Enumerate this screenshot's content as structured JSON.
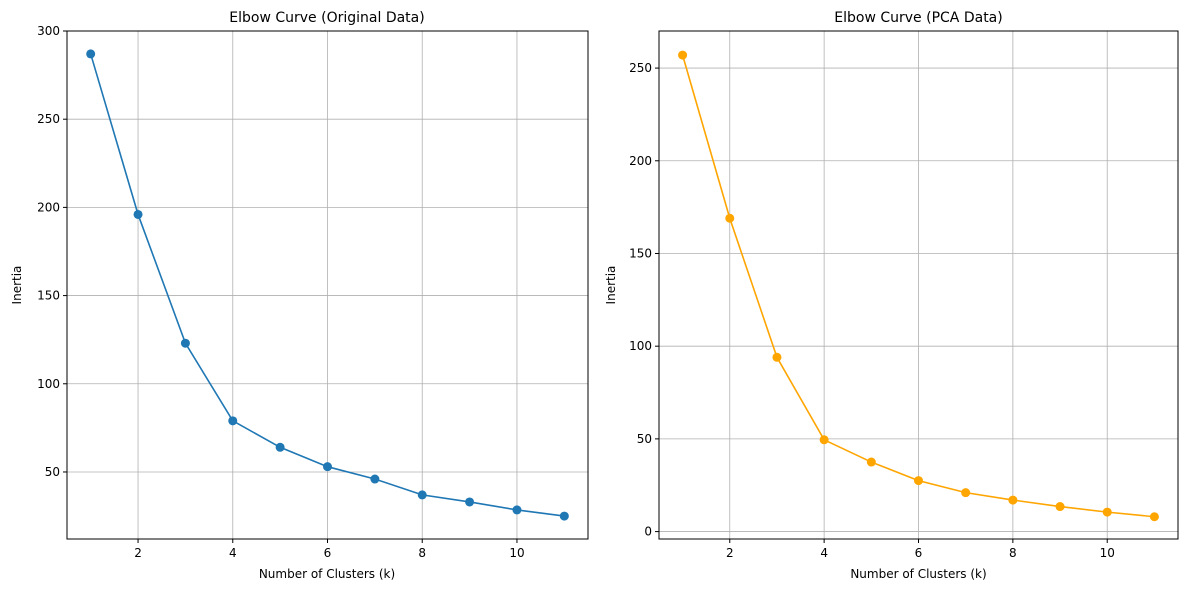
{
  "chart_data": [
    {
      "type": "line",
      "title": "Elbow Curve (Original Data)",
      "xlabel": "Number of Clusters (k)",
      "ylabel": "Inertia",
      "x": [
        1,
        2,
        3,
        4,
        5,
        6,
        7,
        8,
        9,
        10,
        11
      ],
      "series": [
        {
          "values": [
            287,
            196,
            123,
            79,
            64,
            53,
            46,
            37,
            33,
            28.5,
            25
          ],
          "color": "#1f77b4",
          "marker": "circle"
        }
      ],
      "xlim": [
        0.5,
        11.5
      ],
      "ylim": [
        12,
        300
      ],
      "xticks": [
        2,
        4,
        6,
        8,
        10
      ],
      "yticks": [
        50,
        100,
        150,
        200,
        250,
        300
      ],
      "grid": true
    },
    {
      "type": "line",
      "title": "Elbow Curve (PCA Data)",
      "xlabel": "Number of Clusters (k)",
      "ylabel": "Inertia",
      "x": [
        1,
        2,
        3,
        4,
        5,
        6,
        7,
        8,
        9,
        10,
        11
      ],
      "series": [
        {
          "values": [
            257,
            169,
            94,
            49.5,
            37.5,
            27.5,
            21,
            17,
            13.5,
            10.5,
            8
          ],
          "color": "#ffa500",
          "marker": "circle"
        }
      ],
      "xlim": [
        0.5,
        11.5
      ],
      "ylim": [
        -4,
        270
      ],
      "xticks": [
        2,
        4,
        6,
        8,
        10
      ],
      "yticks": [
        0,
        50,
        100,
        150,
        200,
        250
      ],
      "grid": true
    }
  ]
}
